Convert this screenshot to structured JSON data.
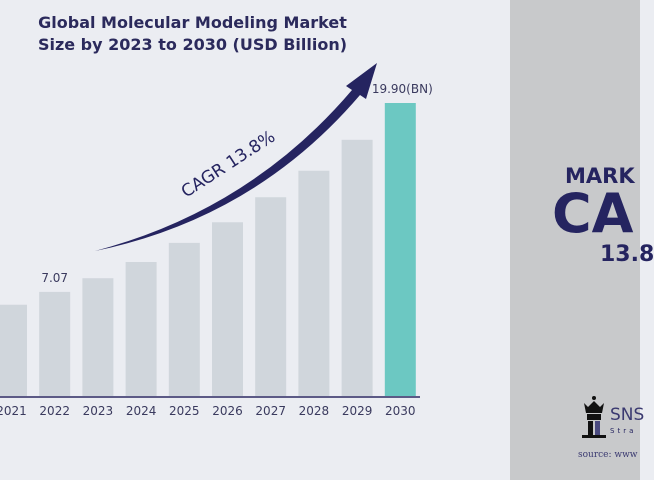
{
  "chart_data": {
    "type": "bar",
    "title": "Global Molecular Modeling Market Size by 2023 to 2030 (USD Billion)",
    "title_lines": [
      "Global Molecular Modeling Market",
      "Size by 2023 to 2030 (USD Billion)"
    ],
    "categories": [
      "2021",
      "2022",
      "2023",
      "2024",
      "2025",
      "2026",
      "2027",
      "2028",
      "2029",
      "2030"
    ],
    "values": [
      6.2,
      7.07,
      8.0,
      9.1,
      10.4,
      11.8,
      13.5,
      15.3,
      17.4,
      19.9
    ],
    "data_labels": {
      "2022": "7.07",
      "2030": "19.90(BN)"
    },
    "ylim": [
      0,
      20
    ],
    "grid": false,
    "annotation": "CAGR 13.8%",
    "colors": {
      "bar": "#d0d6dc",
      "highlight": "#6cc8c2",
      "text": "#2b2a5c",
      "arrow": "#252460"
    }
  },
  "side_panel": {
    "line1": "MARK",
    "line2": "CA",
    "line3": "13.8",
    "logo_text": "SNS",
    "logo_sub": "Stra",
    "source": "source: www"
  }
}
